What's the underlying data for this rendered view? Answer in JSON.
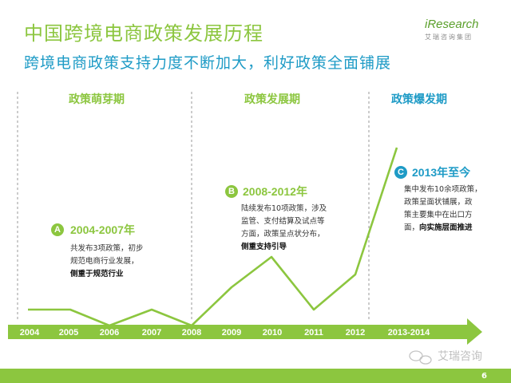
{
  "header": {
    "title": "中国跨境电商政策发展历程",
    "subtitle": "跨境电商政策支持力度不断加大，利好政策全面铺展"
  },
  "logo": {
    "name": "iResearch",
    "sub": "艾瑞咨询集团"
  },
  "phases": [
    {
      "label": "政策萌芽期",
      "color": "#8cc63f"
    },
    {
      "label": "政策发展期",
      "color": "#8cc63f"
    },
    {
      "label": "政策爆发期",
      "color": "#1e9bc6"
    }
  ],
  "callouts": [
    {
      "badge": "A",
      "period": "2004-2007年",
      "lines": [
        "共发布3项政策，初步",
        "规范电商行业发展，"
      ],
      "emphasis": "侧重于规范行业",
      "badge_color": "#8cc63f",
      "period_color": "#8cc63f"
    },
    {
      "badge": "B",
      "period": "2008-2012年",
      "lines": [
        "陆续发布10项政策，涉及",
        "监管、支付结算及试点等",
        "方面，政策呈点状分布，"
      ],
      "emphasis": "侧重支持引导",
      "badge_color": "#8cc63f",
      "period_color": "#8cc63f"
    },
    {
      "badge": "C",
      "period": "2013年至今",
      "lines": [
        "集中发布10余项政策，",
        "政策呈面状铺展，政",
        "策主要集中在出口方"
      ],
      "line_last_prefix": "面，",
      "emphasis": "向实施层面推进",
      "badge_color": "#1e9bc6",
      "period_color": "#1e9bc6"
    }
  ],
  "timeline": {
    "years": [
      "2004",
      "2005",
      "2006",
      "2007",
      "2008",
      "2009",
      "2010",
      "2011",
      "2012",
      "2013-2014"
    ],
    "line_color": "#8cc63f",
    "text_color": "#ffffff"
  },
  "footer": {
    "wechat": "艾瑞咨询",
    "page_number": "6",
    "bar_color": "#8cc63f"
  }
}
